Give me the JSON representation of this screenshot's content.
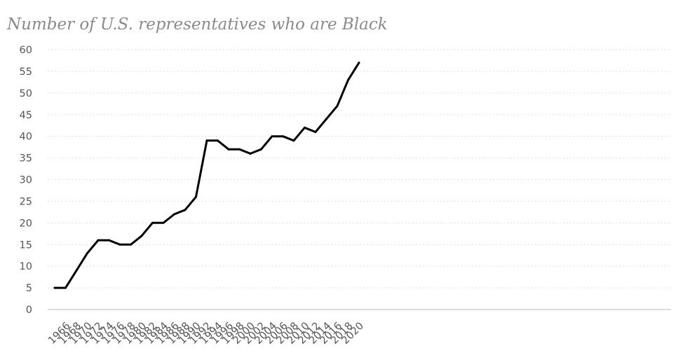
{
  "chart_data": {
    "type": "line",
    "title": "Number of U.S. representatives who are Black",
    "xlabel": "",
    "ylabel": "",
    "ylim": [
      0,
      60
    ],
    "yticks": [
      0,
      5,
      10,
      15,
      20,
      25,
      30,
      35,
      40,
      45,
      50,
      55,
      60
    ],
    "xticks": [
      "1966",
      "1968",
      "1970",
      "1972",
      "1974",
      "1976",
      "1978",
      "1980",
      "1982",
      "1984",
      "1986",
      "1988",
      "1990",
      "1992",
      "1994",
      "1996",
      "1998",
      "2000",
      "2002",
      "2004",
      "2006",
      "2008",
      "2010",
      "2012",
      "2014",
      "2016",
      "2018",
      "2020"
    ],
    "grid": "horizontal dotted",
    "line_color": "#000000",
    "series": [
      {
        "x": [
          "1965",
          "1967",
          "1969",
          "1971",
          "1973",
          "1975",
          "1977",
          "1979",
          "1981",
          "1983",
          "1985",
          "1987",
          "1989",
          "1991",
          "1993",
          "1995",
          "1997",
          "1999",
          "2001",
          "2003",
          "2005",
          "2007",
          "2009",
          "2011",
          "2013",
          "2015",
          "2017",
          "2019",
          "2021"
        ],
        "values": [
          5,
          5,
          9,
          13,
          16,
          16,
          15,
          15,
          17,
          20,
          20,
          22,
          23,
          26,
          39,
          39,
          37,
          37,
          36,
          37,
          40,
          40,
          39,
          42,
          41,
          44,
          47,
          53,
          57
        ]
      }
    ]
  }
}
